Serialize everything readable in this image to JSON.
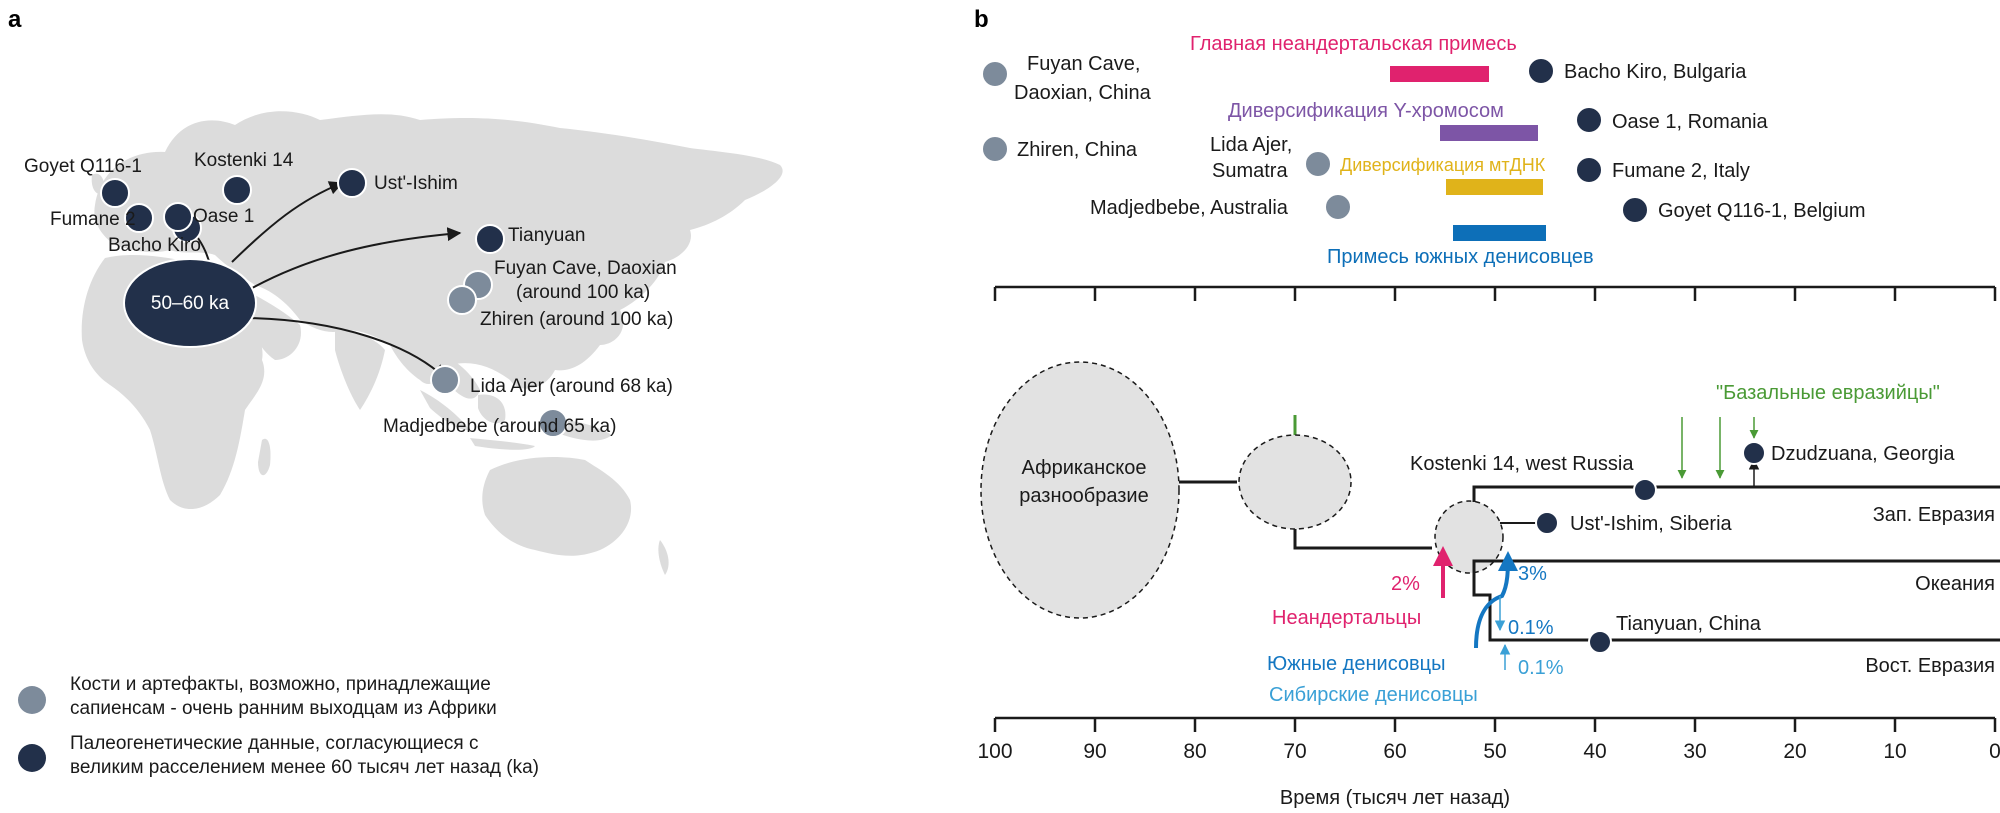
{
  "panel_a": {
    "letter": "a",
    "origin_label": "50–60 ka",
    "sites": {
      "goyet": "Goyet Q116-1",
      "fumane": "Fumane 2",
      "bacho": "Bacho Kiro",
      "oase": "Oase 1",
      "kostenki": "Kostenki 14",
      "ustishim": "Ust'-Ishim",
      "tianyuan": "Tianyuan",
      "fuyan1": "Fuyan Cave, Daoxian",
      "fuyan2": "(around 100 ka)",
      "zhiren": "Zhiren (around 100 ka)",
      "lida": "Lida Ajer (around 68 ka)",
      "madj": "Madjedbebe (around 65 ka)"
    },
    "legend": {
      "grey_line1": "Кости и артефакты, возможно, принадлежащие",
      "grey_line2": "сапиенсам - очень ранним выходцам из Африки",
      "dark_line1": "Палеогенетические данные, согласующиеся с",
      "dark_line2": "великим расселением менее 60 тысяч лет назад (ka)"
    },
    "colors": {
      "map": "#dcdcdc",
      "dark_dot": "#22304a",
      "grey_dot": "#7d8b9b"
    }
  },
  "panel_b": {
    "letter": "b",
    "events": {
      "neanderthal": "Главная неандертальская примесь",
      "ychrom": "Диверсификация Y-хромосом",
      "mtdna": "Диверсификация мтДНК",
      "denisovan": "Примесь южных денисовцев"
    },
    "event_colors": {
      "neanderthal": "#e0226e",
      "ychrom": "#7d55a6",
      "mtdna": "#e0b31a",
      "denisovan": "#0d6fb8"
    },
    "top_sites": {
      "fuyan1": "Fuyan Cave,",
      "fuyan2": "Daoxian, China",
      "zhiren": "Zhiren, China",
      "lida1": "Lida Ajer,",
      "lida2": "Sumatra",
      "madj": "Madjedbebe, Australia",
      "bacho": "Bacho Kiro, Bulgaria",
      "oase": "Oase 1, Romania",
      "fumane": "Fumane 2, Italy",
      "goyet": "Goyet Q116-1, Belgium"
    },
    "tree": {
      "african": [
        "Африканское",
        "разнообразие"
      ],
      "basal": "\"Базальные евразийцы\"",
      "kostenki": "Kostenki 14, west Russia",
      "dzudzuana": "Dzudzuana, Georgia",
      "ustishim": "Ust'-Ishim, Siberia",
      "tianyuan": "Tianyuan, China",
      "west": "Зап. Евразия",
      "oceania": "Океания",
      "east": "Вост. Евразия",
      "nea_pct": "2%",
      "nea_label": "Неандертальцы",
      "den3": "3%",
      "den01a": "0.1%",
      "den01b": "0.1%",
      "south_den": "Южные денисовцы",
      "sib_den": "Сибирские денисовцы"
    },
    "axis": {
      "ticks": [
        "100",
        "90",
        "80",
        "70",
        "60",
        "50",
        "40",
        "30",
        "20",
        "10",
        "0"
      ],
      "label": "Время (тысяч лет назад)"
    }
  }
}
